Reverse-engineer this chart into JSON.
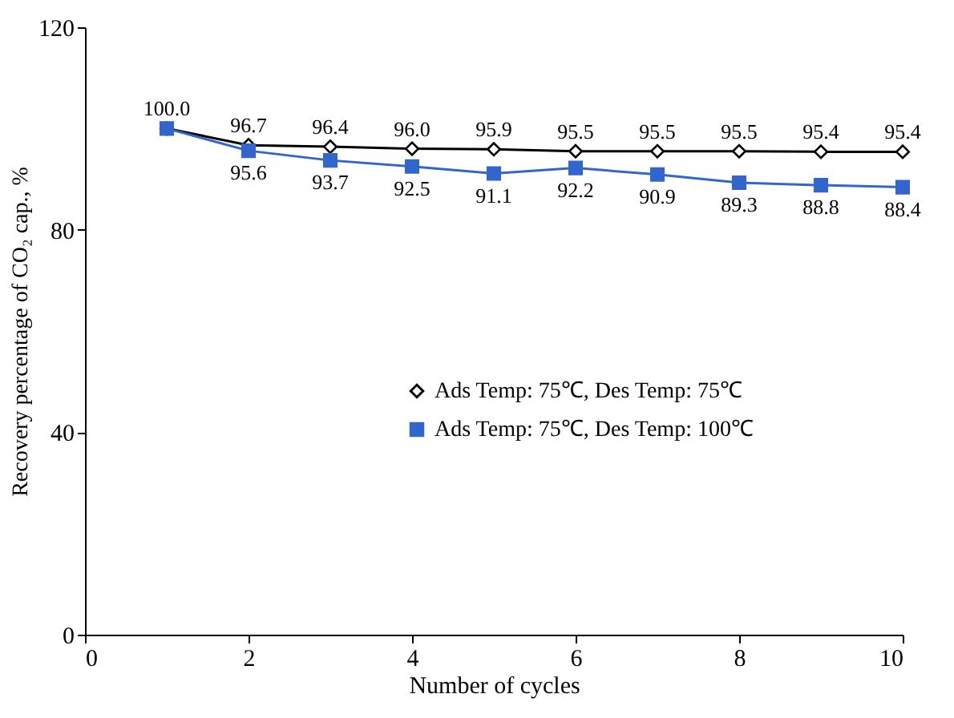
{
  "chart_data": {
    "type": "line",
    "xlabel": "Number of cycles",
    "ylabel": "Recovery percentage of CO₂ cap., %",
    "x": [
      1,
      2,
      3,
      4,
      5,
      6,
      7,
      8,
      9,
      10
    ],
    "series": [
      {
        "name": "Ads Temp: 75℃, Des Temp: 75℃",
        "color": "#000000",
        "marker": "diamond",
        "values": [
          100.0,
          96.7,
          96.4,
          96.0,
          95.9,
          95.5,
          95.5,
          95.5,
          95.4,
          95.4
        ],
        "value_labels": [
          "100.0",
          "96.7",
          "96.4",
          "96.0",
          "95.9",
          "95.5",
          "95.5",
          "95.5",
          "95.4",
          "95.4"
        ]
      },
      {
        "name": "Ads Temp: 75℃, Des Temp: 100℃",
        "color": "#3366cc",
        "marker": "square",
        "values": [
          100.0,
          95.6,
          93.7,
          92.5,
          91.1,
          92.2,
          90.9,
          89.3,
          88.8,
          88.4
        ],
        "value_labels": [
          null,
          "95.6",
          "93.7",
          "92.5",
          "91.1",
          "92.2",
          "90.9",
          "89.3",
          "88.8",
          "88.4"
        ]
      }
    ],
    "xlim": [
      0,
      10
    ],
    "xticks": [
      0,
      2,
      4,
      6,
      8,
      10
    ],
    "ylim": [
      0,
      120
    ],
    "yticks": [
      0,
      40,
      80,
      120
    ],
    "grid": false,
    "legend": "right",
    "line_style": "solid"
  }
}
